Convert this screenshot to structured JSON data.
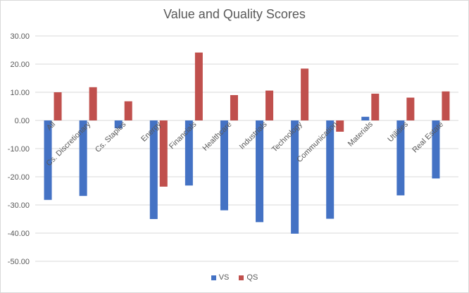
{
  "chart_data": {
    "type": "bar",
    "title": "Value and Quality Scores",
    "xlabel": "",
    "ylabel": "",
    "ylim": [
      -50,
      30
    ],
    "ytick_step": 10,
    "ytick_format": "0.00",
    "grid": true,
    "legend_position": "bottom",
    "categories": [
      "All",
      "Cs. Discretionary",
      "Cs. Staples",
      "Energy",
      "Financials",
      "Healthcare",
      "Industrials",
      "Technology",
      "Communication",
      "Materials",
      "Utilities",
      "Real Estate"
    ],
    "series": [
      {
        "name": "VS",
        "color": "#4472c4",
        "values": [
          -28.2,
          -26.8,
          -2.8,
          -35.0,
          -23.1,
          -31.9,
          -36.1,
          -40.2,
          -34.9,
          1.3,
          -26.6,
          -20.6
        ]
      },
      {
        "name": "QS",
        "color": "#c0504d",
        "values": [
          10.0,
          11.8,
          6.8,
          -23.5,
          24.1,
          9.0,
          10.6,
          18.4,
          -4.0,
          9.5,
          8.1,
          10.3
        ]
      }
    ]
  }
}
